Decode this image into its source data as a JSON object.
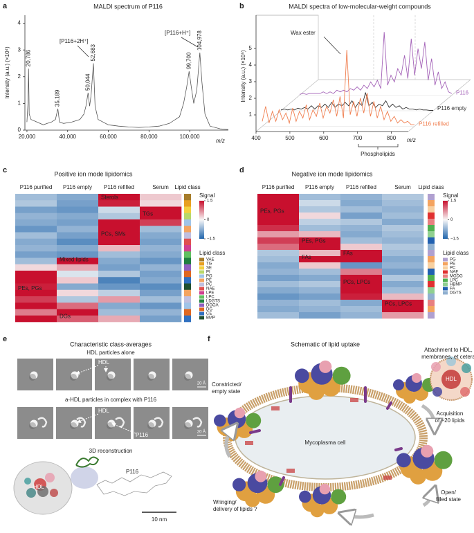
{
  "panel_labels": [
    "a",
    "b",
    "c",
    "d",
    "e",
    "f"
  ],
  "chart_data": [
    {
      "type": "line",
      "title": "MALDI spectrum of P116",
      "x_label": "m/z",
      "y_label": "Intensity (a.u.) (×10⁴)",
      "color": "#555555",
      "x": [
        20000,
        20500,
        20786,
        21100,
        22000,
        25000,
        28000,
        30000,
        32000,
        34000,
        35189,
        36000,
        38000,
        42000,
        46000,
        48000,
        49000,
        50044,
        50800,
        51500,
        52683,
        53500,
        55000,
        60000,
        65000,
        70000,
        75000,
        80000,
        85000,
        90000,
        95000,
        97000,
        98500,
        99700,
        100800,
        102000,
        103500,
        104978,
        106000,
        107500,
        110000,
        115000,
        119000
      ],
      "values": [
        0.3,
        1.0,
        2.3,
        0.6,
        0.4,
        0.3,
        0.2,
        0.25,
        0.3,
        0.4,
        0.8,
        0.3,
        0.25,
        0.3,
        0.4,
        0.6,
        0.9,
        1.4,
        0.9,
        1.3,
        2.5,
        0.9,
        0.4,
        0.2,
        0.15,
        0.12,
        0.1,
        0.12,
        0.15,
        0.25,
        0.5,
        1.0,
        1.6,
        2.2,
        1.6,
        1.0,
        1.5,
        2.9,
        1.8,
        0.6,
        0.15,
        0.05,
        0.02
      ],
      "peak_labels": [
        {
          "value": 20786,
          "label": "20,786"
        },
        {
          "value": 35189,
          "label": "35,189"
        },
        {
          "value": 50044,
          "label": "50,044"
        },
        {
          "value": 52683,
          "label": "52,683"
        },
        {
          "value": 99700,
          "label": "99,700"
        },
        {
          "value": 104978,
          "label": "104,978"
        }
      ],
      "ion_labels": [
        "[P116+2H⁺]",
        "[P116+H⁺]"
      ],
      "xlim": [
        19000,
        119000
      ],
      "xticks": [
        {
          "value": 20000,
          "label": "20,000"
        },
        {
          "value": 40000,
          "label": "40,000"
        },
        {
          "value": 60000,
          "label": "60,000"
        },
        {
          "value": 80000,
          "label": "80,000"
        },
        {
          "value": 100000,
          "label": "100,000"
        }
      ],
      "ylim": [
        0,
        4.3
      ],
      "yticks": [
        0,
        1,
        2,
        3,
        4
      ]
    },
    {
      "type": "line",
      "title": "MALDI spectra of low-molecular-weight compounds",
      "x_label": "m/z",
      "y_label": "Intensity (a.u.) (×10⁵)",
      "annotations": [
        "Wax ester",
        "Phospholipids"
      ],
      "x": [
        400,
        410,
        420,
        430,
        440,
        450,
        460,
        470,
        480,
        490,
        500,
        510,
        520,
        530,
        540,
        550,
        560,
        570,
        580,
        590,
        600,
        610,
        620,
        630,
        640,
        650,
        660,
        670,
        680,
        690,
        700,
        710,
        720,
        730,
        740,
        750,
        760,
        770,
        780,
        790,
        800,
        810,
        820,
        830,
        840,
        850
      ],
      "series": [
        {
          "name": "P116",
          "color": "#a463b8",
          "values": [
            0.05,
            0.1,
            0.05,
            0.1,
            0.1,
            0.1,
            0.1,
            0.2,
            0.1,
            0.2,
            0.1,
            0.3,
            0.2,
            0.3,
            0.2,
            0.4,
            0.3,
            0.5,
            0.3,
            0.6,
            0.4,
            0.8,
            0.5,
            0.9,
            0.4,
            3.8,
            0.6,
            1.2,
            0.8,
            1.6,
            1.2,
            2.4,
            1.0,
            3.4,
            1.2,
            2.8,
            1.6,
            3.2,
            0.9,
            2.2,
            0.6,
            1.4,
            0.4,
            0.8,
            0.2,
            0.1
          ]
        },
        {
          "name": "P116 empty",
          "color": "#333333",
          "values": [
            0.05,
            0.1,
            0.05,
            0.1,
            0.05,
            0.15,
            0.1,
            0.2,
            0.1,
            0.3,
            0.1,
            0.3,
            0.2,
            0.4,
            0.2,
            0.5,
            0.2,
            0.4,
            0.3,
            0.5,
            0.3,
            0.6,
            0.2,
            0.5,
            0.3,
            1.1,
            0.3,
            0.5,
            0.2,
            0.4,
            0.3,
            0.6,
            0.2,
            0.4,
            0.2,
            0.3,
            0.1,
            0.2,
            0.1,
            0.1,
            0.05,
            0.1,
            0.05,
            0.05,
            0.02,
            0.02
          ]
        },
        {
          "name": "P116 refilled",
          "color": "#f07f50",
          "values": [
            0.3,
            1.2,
            0.2,
            0.9,
            0.3,
            1.0,
            0.4,
            0.8,
            0.2,
            1.1,
            0.3,
            0.9,
            0.5,
            1.3,
            0.4,
            1.0,
            0.6,
            1.4,
            0.5,
            1.2,
            0.8,
            1.6,
            0.6,
            1.8,
            0.5,
            4.6,
            0.7,
            1.5,
            0.6,
            1.7,
            0.8,
            2.0,
            0.6,
            1.5,
            0.5,
            1.2,
            0.4,
            0.9,
            0.3,
            0.6,
            0.2,
            0.4,
            0.2,
            0.3,
            0.1,
            0.1
          ]
        }
      ],
      "xlim": [
        400,
        850
      ],
      "xticks": [
        400,
        500,
        600,
        700,
        800
      ],
      "ylim": [
        0,
        7
      ],
      "yticks": [
        1,
        2,
        3,
        4,
        5
      ]
    }
  ],
  "heatmaps": [
    {
      "type": "heatmap",
      "title": "Positive ion mode lipidomics",
      "columns": [
        "P116 purified",
        "P116 empty",
        "P116 refilled",
        "Serum",
        "Lipid class"
      ],
      "region_labels": [
        "Sterols",
        "TGs",
        "PCs, SMs",
        "Mixed lipids",
        "PEs, PGs",
        "DGs"
      ],
      "colorbar_title": "Signal",
      "colorbar_ticks": [
        1.5,
        0,
        {
          "value": -1.5,
          "label": "−1.5"
        }
      ],
      "colormap": [
        "#2166ac",
        "#f7f7f7",
        "#c8102e"
      ],
      "legend_title": "Lipid class",
      "lipid_classes": [
        {
          "name": "VAE",
          "color": "#a67c2a"
        },
        {
          "name": "TG",
          "color": "#e8a020"
        },
        {
          "name": "SE",
          "color": "#f4d03f"
        },
        {
          "name": "PI",
          "color": "#b8d86b"
        },
        {
          "name": "PG",
          "color": "#a0c4e8"
        },
        {
          "name": "PE",
          "color": "#f4a460"
        },
        {
          "name": "PC",
          "color": "#c0c0e0"
        },
        {
          "name": "NAE",
          "color": "#e05050"
        },
        {
          "name": "LPE",
          "color": "#d04090"
        },
        {
          "name": "LPC",
          "color": "#60c060"
        },
        {
          "name": "LDGTS",
          "color": "#208040"
        },
        {
          "name": "DGGA",
          "color": "#9060c0"
        },
        {
          "name": "DG",
          "color": "#e06820"
        },
        {
          "name": "CE",
          "color": "#3070c0"
        },
        {
          "name": "BMP",
          "color": "#205030"
        }
      ],
      "class_rows": [
        0,
        1,
        2,
        3,
        4,
        5,
        6,
        7,
        8,
        9,
        10,
        11,
        12,
        13,
        14,
        5,
        6,
        4,
        12,
        13
      ],
      "rows": [
        [
          -0.6,
          -0.8,
          1.5,
          0.3
        ],
        [
          -0.5,
          -0.9,
          1.4,
          0.2
        ],
        [
          -0.9,
          -1.0,
          -0.3,
          1.5
        ],
        [
          -0.7,
          -0.8,
          -0.5,
          1.5
        ],
        [
          -0.8,
          -0.9,
          1.5,
          1.2
        ],
        [
          -1.0,
          -0.7,
          1.5,
          -0.6
        ],
        [
          -0.6,
          -0.9,
          1.5,
          -0.8
        ],
        [
          -0.8,
          -1.1,
          1.5,
          -0.9
        ],
        [
          -0.7,
          -0.8,
          0.4,
          -0.7
        ],
        [
          -0.9,
          -1.0,
          -0.6,
          -0.8
        ],
        [
          -0.6,
          1.5,
          -0.8,
          -1.0
        ],
        [
          0.2,
          0.5,
          -0.9,
          -0.7
        ],
        [
          1.5,
          -0.2,
          -0.5,
          -0.9
        ],
        [
          1.5,
          0.3,
          -1.2,
          -0.8
        ],
        [
          1.4,
          -0.8,
          -1.0,
          -1.1
        ],
        [
          1.5,
          0.2,
          -0.4,
          -0.9
        ],
        [
          1.2,
          -0.5,
          0.6,
          -0.6
        ],
        [
          1.5,
          0.9,
          -0.8,
          -1.0
        ],
        [
          0.8,
          1.5,
          -0.6,
          -0.7
        ],
        [
          1.5,
          1.0,
          0.5,
          -0.9
        ]
      ]
    },
    {
      "type": "heatmap",
      "title": "Negative ion mode lipidomics",
      "columns": [
        "P116 purified",
        "P116 empty",
        "P116 refilled",
        "Serum",
        "Lipid class"
      ],
      "region_labels": [
        "PEs, PGs",
        "PEs, PGs",
        "FAs",
        "FAs",
        "PCs, LPCs",
        "PCs, LPCs"
      ],
      "colorbar_title": "Signal",
      "colorbar_ticks": [
        1.5,
        0,
        {
          "value": -1.5,
          "label": "−1.5"
        }
      ],
      "colormap": [
        "#2166ac",
        "#f7f7f7",
        "#c8102e"
      ],
      "legend_title": "Lipid class",
      "lipid_classes": [
        {
          "name": "PG",
          "color": "#b0a0d0"
        },
        {
          "name": "PE",
          "color": "#f4a460"
        },
        {
          "name": "PC",
          "color": "#f8d0a0"
        },
        {
          "name": "NAE",
          "color": "#e03030"
        },
        {
          "name": "MGDG",
          "color": "#e88080"
        },
        {
          "name": "LPC",
          "color": "#50b050"
        },
        {
          "name": "HBMP",
          "color": "#90d090"
        },
        {
          "name": "FA",
          "color": "#2060b0"
        },
        {
          "name": "DGTS",
          "color": "#90b0d0"
        }
      ],
      "class_rows": [
        0,
        1,
        2,
        3,
        4,
        5,
        6,
        7,
        8,
        0,
        1,
        2,
        7,
        5,
        3,
        6,
        8,
        4,
        1,
        0
      ],
      "rows": [
        [
          1.5,
          -0.6,
          -0.7,
          -0.5
        ],
        [
          1.5,
          -0.3,
          -0.8,
          -0.6
        ],
        [
          1.5,
          -0.5,
          -0.6,
          -0.7
        ],
        [
          1.5,
          0.2,
          -0.9,
          -0.6
        ],
        [
          1.5,
          -0.4,
          -0.5,
          -0.8
        ],
        [
          1.3,
          -0.6,
          -0.7,
          -0.5
        ],
        [
          0.6,
          0.4,
          -0.8,
          -0.6
        ],
        [
          1.2,
          1.5,
          -0.6,
          -0.7
        ],
        [
          0.9,
          1.5,
          0.3,
          -0.5
        ],
        [
          -0.5,
          0.4,
          1.5,
          -0.6
        ],
        [
          -0.6,
          1.5,
          1.5,
          -0.8
        ],
        [
          -0.8,
          0.3,
          -1.0,
          -0.7
        ],
        [
          -0.7,
          -0.6,
          0.8,
          -0.9
        ],
        [
          -0.9,
          -0.8,
          1.5,
          -0.5
        ],
        [
          -0.6,
          -0.5,
          1.5,
          -0.8
        ],
        [
          -0.8,
          -0.7,
          1.5,
          -0.6
        ],
        [
          -1.0,
          -0.9,
          1.4,
          0.4
        ],
        [
          -0.7,
          -0.6,
          -0.8,
          1.5
        ],
        [
          -0.8,
          -0.7,
          -0.6,
          1.5
        ],
        [
          -0.6,
          -0.9,
          -0.7,
          0.6
        ]
      ]
    }
  ],
  "panel_e": {
    "title": "Characteristic class-averages",
    "row1_title": "HDL particles alone",
    "row1_label": "HDL",
    "row2_title": "a-HDL particles in complex with P116",
    "row2_labels": [
      "HDL",
      "P116"
    ],
    "scale_bar": "20 Å",
    "recon_title": "3D reconstruction",
    "recon_labels": [
      "HDL",
      "P116"
    ],
    "recon_scale": "10 nm"
  },
  "panel_f": {
    "title": "Schematic of lipid uptake",
    "attachment": [
      "Attachment to HDL,",
      "membranes, et cetera"
    ],
    "constricted": [
      "Constricted/",
      "empty state"
    ],
    "acquisition": [
      "Acquisition",
      "of ~20 lipids"
    ],
    "cell": "Mycoplasma cell",
    "open": [
      "Open/",
      "filled state"
    ],
    "wringing": [
      "Wringing/",
      "delivery of lipids ?"
    ],
    "hdl": "HDL"
  }
}
